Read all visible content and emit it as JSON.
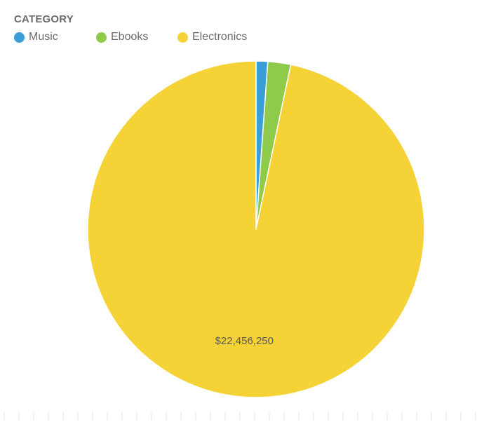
{
  "legend": {
    "title": "CATEGORY",
    "items": [
      {
        "label": "Music",
        "color": "#3a9fd6"
      },
      {
        "label": "Ebooks",
        "color": "#8fcb4a"
      },
      {
        "label": "Electronics",
        "color": "#f5d235"
      }
    ]
  },
  "chart_data": {
    "type": "pie",
    "categories": [
      "Music",
      "Ebooks",
      "Electronics"
    ],
    "values": [
      260000,
      510000,
      22456250
    ],
    "colors": [
      "#3a9fd6",
      "#8fcb4a",
      "#f5d235"
    ],
    "data_labels": [
      "",
      "",
      "$22,456,250"
    ],
    "legend_position": "top-left"
  }
}
